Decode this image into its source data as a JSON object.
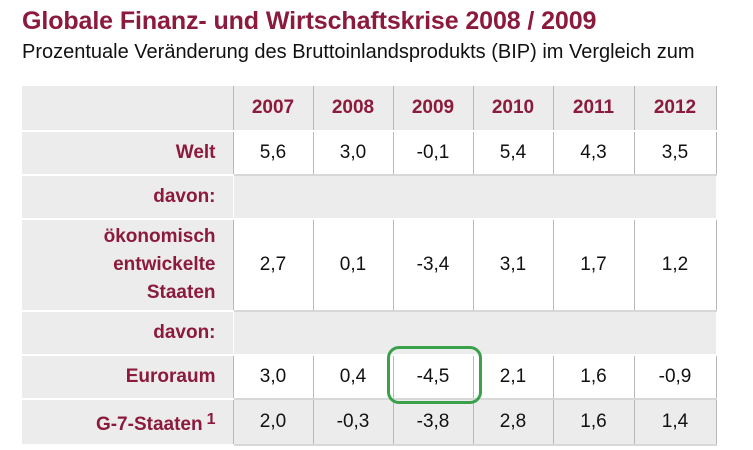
{
  "header": {
    "title": "Globale Finanz- und Wirtschaftskrise 2008 / 2009",
    "subtitle": "Prozentuale Veränderung des Bruttoinlandsprodukts (BIP) im Vergleich zum"
  },
  "table": {
    "years": [
      "2007",
      "2008",
      "2009",
      "2010",
      "2011",
      "2012"
    ],
    "welt": {
      "label": "Welt",
      "values": [
        "5,6",
        "3,0",
        "-0,1",
        "5,4",
        "4,3",
        "3,5"
      ]
    },
    "davon_1": {
      "label": "davon:"
    },
    "entwickelte": {
      "label_line1": "ökonomisch",
      "label_line2": "entwickelte",
      "label_line3": "Staaten",
      "values": [
        "2,7",
        "0,1",
        "-3,4",
        "3,1",
        "1,7",
        "1,2"
      ]
    },
    "davon_2": {
      "label": "davon:"
    },
    "euroraum": {
      "label": "Euroraum",
      "values": [
        "3,0",
        "0,4",
        "-4,5",
        "2,1",
        "1,6",
        "-0,9"
      ]
    },
    "g7": {
      "label": "G-7-Staaten",
      "footnote": "1",
      "values": [
        "2,0",
        "-0,3",
        "-3,8",
        "2,8",
        "1,6",
        "1,4"
      ]
    }
  },
  "highlight": {
    "color": "#3aa14a",
    "cell": "Euroraum 2009"
  },
  "colors": {
    "accent": "#8b1a3c",
    "row_bg": "#ececec"
  }
}
